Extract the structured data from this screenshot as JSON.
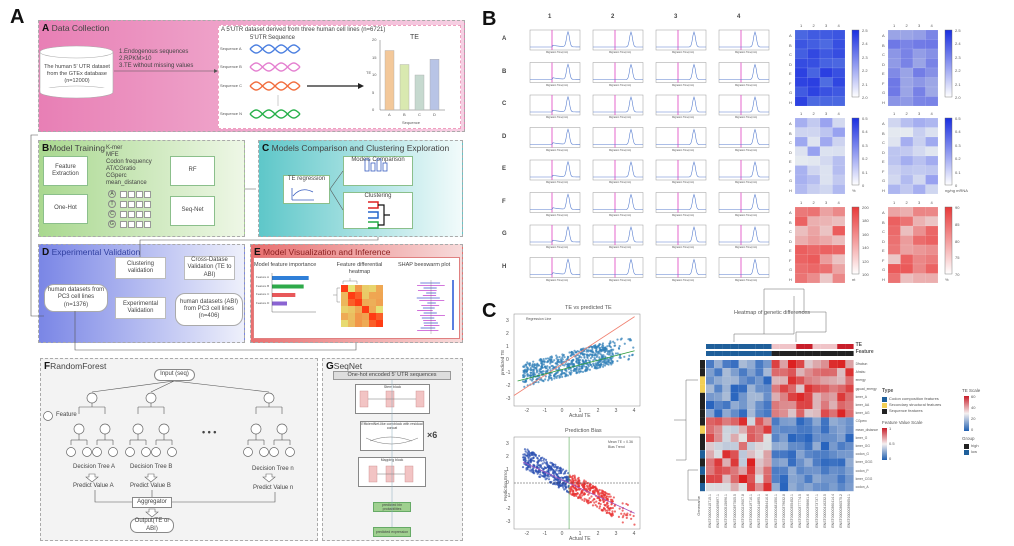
{
  "labels": {
    "A": "A",
    "B": "B",
    "C": "C"
  },
  "panelA": {
    "data_collection": {
      "letter": "A",
      "title": "Data Collection",
      "db_text": "The human 5' UTR dataset from the GTEx database (n=12000)",
      "criteria": [
        "1.Endogenous sequences",
        "2.RPKM>10",
        "3.TE without missing values"
      ],
      "dataset_title": "A 5'UTR dataset derived from three human cell lines  (n=6721)",
      "col_headers": [
        "5'UTR",
        "Sequence"
      ],
      "sequences": [
        "Sequence A",
        "Sequence B",
        "Sequence C",
        "Sequence N"
      ],
      "chart_title": "TE",
      "chart_xlabel": "Sequence",
      "chart_ylabel": "TE",
      "chart_categories": [
        "A",
        "B",
        "C",
        "D"
      ],
      "chart_values": [
        17,
        13,
        10,
        14.5
      ],
      "chart_yticks": [
        "0",
        "5",
        "10",
        "15",
        "20"
      ],
      "bar_colors": [
        "#f3c89a",
        "#d9e9b0",
        "#c6d9cf",
        "#b8c4e6"
      ]
    },
    "model_training": {
      "letter": "B",
      "title": "Model Training",
      "feature_extraction": "Feature Extraction",
      "one_hot": "One-Hot",
      "features": [
        "K-mer",
        "MFE",
        "Codon frequency",
        "AT/CGratio",
        "CGperc",
        "mean_distance"
      ],
      "bases": [
        "A",
        "T",
        "C",
        "G"
      ],
      "rf": "RF",
      "seqnet": "Seq-Net"
    },
    "comparison": {
      "letter": "C",
      "title": "Models Comparison and Clustering Exploration",
      "te_regression": "TE regression",
      "models_comparison": "Models Comparison",
      "clustering": "Clustering"
    },
    "validation": {
      "letter": "D",
      "title": "Experimental Validation",
      "pc3": "human datasets from PC3 cell lines (n=1376)",
      "clustering_validation": "Clustering validation",
      "experimental_validation": "Experimental Validation",
      "cross_dataset": "Cross-Datase Validation (TE to ABI)",
      "abi": "human datasets (ABI) from PC3 cell lines (n=406)"
    },
    "visualization": {
      "letter": "E",
      "title": "Model Visualization and Inference",
      "feature_importance": "Model feature importance",
      "diff_heatmap": "Feature differential heatmap",
      "shap": "SHAP beeswarm plot",
      "features": [
        "Feature A",
        "Feature B",
        "Feature C",
        "Feature D"
      ],
      "importance": [
        0.22,
        0.19,
        0.14,
        0.09
      ],
      "bar_colors": [
        "#2f7fd8",
        "#2eaa4a",
        "#e8585a",
        "#8a63d2"
      ]
    },
    "random_forest": {
      "letter": "F",
      "title": "RandomForest",
      "input": "Input  (seq)",
      "feature_legend": "Feature",
      "trees": [
        "Decision Tree A",
        "Decision Tree B",
        "Decision Tree n"
      ],
      "predictions": [
        "Predict Value A",
        "Predict Value B",
        "Predict Value n"
      ],
      "ellipsis": "• • •",
      "aggregator": "Aggregator",
      "output": "Output(TE or ABI)"
    },
    "seqnet": {
      "letter": "G",
      "title": "SeqNet",
      "input": "One-hot encoded 5' UTR sequences",
      "stem": "Stem block",
      "effnet": "EfficientNet-like convblock with residual concat",
      "repeat": "×6",
      "mapping": "Mapping block",
      "out1": "predicted bin probabilities",
      "out2": "predicted expression"
    }
  },
  "panelB": {
    "col_labels": [
      "1",
      "2",
      "3",
      "4"
    ],
    "row_labels": [
      "A",
      "B",
      "C",
      "D",
      "E",
      "F",
      "G",
      "H"
    ],
    "xlabel": "Migration Time(min)",
    "heatmap_units": [
      "",
      "",
      "%",
      "ng/ng mRNA",
      "nt",
      "%"
    ],
    "colorbar_ticks": [
      [
        "2.5",
        "2.4",
        "2.3",
        "2.2",
        "2.1",
        "2.0"
      ],
      [
        "2.5",
        "2.4",
        "2.3",
        "2.2",
        "2.1",
        "2.0"
      ],
      [
        "0.5",
        "0.4",
        "0.3",
        "0.2",
        "0.1",
        "0"
      ],
      [
        "0.5",
        "0.4",
        "0.3",
        "0.2",
        "0.1",
        "0"
      ],
      [
        "200",
        "180",
        "160",
        "140",
        "120",
        "100"
      ],
      [
        "90",
        "85",
        "80",
        "75",
        "70"
      ]
    ]
  },
  "panelC": {
    "scatter1": {
      "title": "TE vs predicted TE",
      "xlabel": "Actual TE",
      "ylabel": "predicted TE",
      "legend": "Regression Line",
      "xticks": [
        "-2",
        "-1",
        "0",
        "1",
        "2",
        "3",
        "4"
      ],
      "yticks": [
        "3",
        "2",
        "1",
        "0",
        "-1",
        "-2",
        "-3"
      ]
    },
    "scatter2": {
      "title": "Prediction Bias",
      "xlabel": "Actual TE",
      "ylabel": "Prediction Error",
      "legend": [
        "Mean TE = 0.36",
        "Bias Trend"
      ],
      "xticks": [
        "-2",
        "-1",
        "0",
        "1",
        "2",
        "3",
        "4"
      ],
      "yticks": [
        "3",
        "2",
        "1",
        "0",
        "-1",
        "-2",
        "-3"
      ]
    },
    "heatmap": {
      "title": "Heatmap of genetic differences",
      "te_label": "TE",
      "feature_label": "Feature",
      "rows": [
        "Dfrabun",
        "Afrabu",
        "energy",
        "gquad_energy",
        "kmer_A",
        "kmer_AA",
        "kmer_AG",
        "CGperc",
        "mean_distance",
        "kmer_G",
        "kmer_GG",
        "codon_G",
        "kmer_GGG",
        "codon_P",
        "kmer_CGG",
        "codon_A"
      ],
      "row_types": [
        2,
        2,
        1,
        1,
        2,
        2,
        2,
        2,
        1,
        2,
        2,
        0,
        2,
        0,
        2,
        0
      ],
      "genes_label": "Genename",
      "genes": [
        "ENST00000415715.1",
        "ENST00000459897.1",
        "ENST00000515696.1",
        "ENST00000397505.5",
        "ENST00000219007.8",
        "ENST00000419710.1",
        "ENST00000414895.1",
        "ENST00000384410.6",
        "ENST00000481550.1",
        "ENST00000379632.8",
        "ENST00000355452.1",
        "ENST00000377774.5",
        "ENST00000398661.6",
        "ENST00000373737.1",
        "ENST00000416232.5",
        "ENST00000360414.4",
        "ENST00000360575.2",
        "ENST00000396654.1"
      ],
      "type_legend_title": "Type",
      "types": [
        "Codon composition features",
        "Secondary structural features",
        "Sequence features"
      ],
      "type_colors": [
        "#1f5f9a",
        "#f2cf55",
        "#222222"
      ],
      "fv_title": "Feature Value Scale",
      "fv_ticks": [
        "1",
        "0.5",
        "0"
      ],
      "te_scale_title": "TE Scale",
      "te_ticks": [
        "60",
        "40",
        "20",
        "0"
      ],
      "group_title": "Group",
      "groups": [
        "high",
        "low"
      ],
      "group_colors": [
        "#222222",
        "#1f5f9a"
      ]
    }
  }
}
